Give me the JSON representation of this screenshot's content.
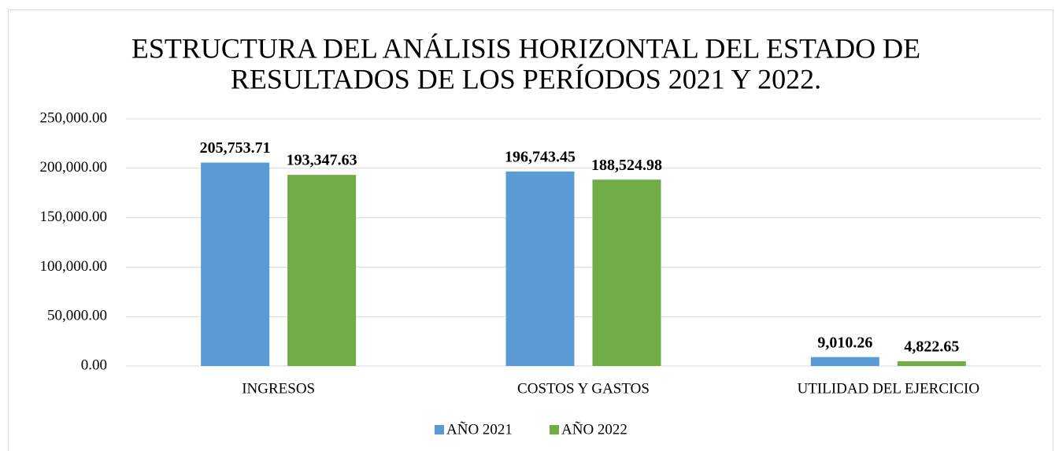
{
  "chart_data": {
    "type": "bar",
    "title": [
      "ESTRUCTURA DEL ANÁLISIS HORIZONTAL DEL ESTADO DE",
      "RESULTADOS DE LOS PERÍODOS 2021 Y 2022."
    ],
    "categories": [
      "INGRESOS",
      "COSTOS Y GASTOS",
      "UTILIDAD DEL EJERCICIO"
    ],
    "series": [
      {
        "name": "AÑO 2021",
        "color": "#5b9bd5",
        "values": [
          205753.71,
          196743.45,
          9010.26
        ],
        "value_labels": [
          "205,753.71",
          "196,743.45",
          "9,010.26"
        ]
      },
      {
        "name": "AÑO 2022",
        "color": "#70ad47",
        "values": [
          193347.63,
          188524.98,
          4822.65
        ],
        "value_labels": [
          "193,347.63",
          "188,524.98",
          "4,822.65"
        ]
      }
    ],
    "ylim": [
      0,
      250000
    ],
    "yticks": [
      {
        "value": 0,
        "label": "0.00"
      },
      {
        "value": 50000,
        "label": "50,000.00"
      },
      {
        "value": 100000,
        "label": "100,000.00"
      },
      {
        "value": 150000,
        "label": "150,000.00"
      },
      {
        "value": 200000,
        "label": "200,000.00"
      },
      {
        "value": 250000,
        "label": "250,000.00"
      }
    ],
    "grid": true,
    "legend": "bottom"
  }
}
